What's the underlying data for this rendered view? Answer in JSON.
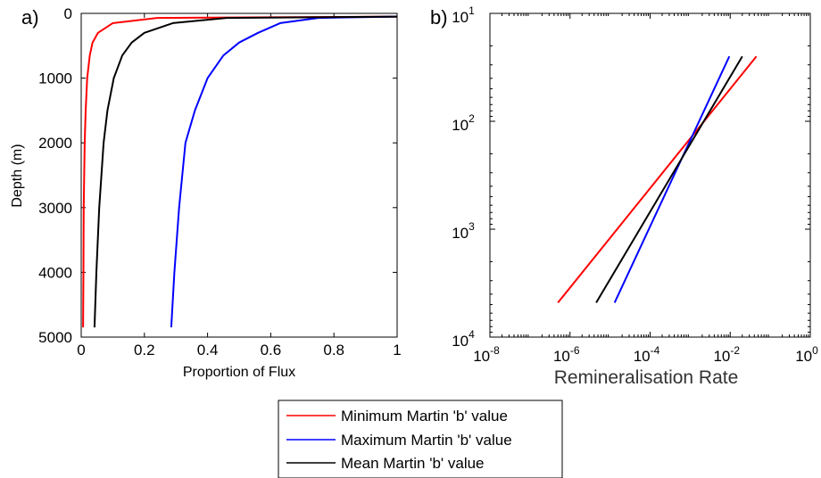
{
  "figure": {
    "panel_a_label": "a)",
    "panel_b_label": "b)",
    "legend": {
      "min": "Minimum Martin 'b' value",
      "max": "Maximum Martin 'b' value",
      "mean": "Mean Martin 'b' value"
    }
  },
  "colors": {
    "min": "#ff0000",
    "max": "#0000ff",
    "mean": "#000000"
  },
  "chart_data": [
    {
      "type": "line",
      "xlabel": "Proportion of Flux",
      "ylabel": "Depth (m)",
      "xlim": [
        0,
        1
      ],
      "ylim": [
        0,
        5000
      ],
      "y_reversed": true,
      "x_ticks": [
        "0",
        "0.2",
        "0.4",
        "0.6",
        "0.8",
        "1"
      ],
      "x_tick_values": [
        0,
        0.2,
        0.4,
        0.6,
        0.8,
        1
      ],
      "y_ticks": [
        "0",
        "1000",
        "2000",
        "3000",
        "4000",
        "5000"
      ],
      "y_tick_values": [
        0,
        1000,
        2000,
        3000,
        4000,
        5000
      ],
      "grid": false,
      "series": [
        {
          "name": "Minimum Martin 'b' value",
          "color": "#ff0000",
          "x": [
            1.0,
            0.24,
            0.1,
            0.053,
            0.036,
            0.027,
            0.019,
            0.014,
            0.011,
            0.008,
            0.007,
            0.006
          ],
          "y": [
            50,
            70,
            150,
            300,
            450,
            650,
            1000,
            1500,
            2000,
            3000,
            4000,
            4850
          ]
        },
        {
          "name": "Maximum Martin 'b' value",
          "color": "#0000ff",
          "x": [
            1.0,
            0.75,
            0.63,
            0.56,
            0.5,
            0.45,
            0.4,
            0.36,
            0.33,
            0.31,
            0.295,
            0.285
          ],
          "y": [
            50,
            70,
            150,
            300,
            450,
            650,
            1000,
            1500,
            2000,
            3000,
            4000,
            4850
          ]
        },
        {
          "name": "Mean Martin 'b' value",
          "color": "#000000",
          "x": [
            1.0,
            0.46,
            0.29,
            0.2,
            0.16,
            0.13,
            0.103,
            0.083,
            0.071,
            0.057,
            0.048,
            0.042
          ],
          "y": [
            50,
            70,
            150,
            300,
            450,
            650,
            1000,
            1500,
            2000,
            3000,
            4000,
            4850
          ]
        }
      ]
    },
    {
      "type": "line",
      "xlabel": "Remineralisation Rate",
      "ylabel": "",
      "x_scale": "log",
      "y_scale": "log",
      "y_reversed": true,
      "xlim": [
        1e-08,
        1
      ],
      "ylim": [
        10,
        10000
      ],
      "x_ticks": [
        {
          "base": "10",
          "exp": "-8",
          "value": 1e-08
        },
        {
          "base": "10",
          "exp": "-6",
          "value": 1e-06
        },
        {
          "base": "10",
          "exp": "-4",
          "value": 0.0001
        },
        {
          "base": "10",
          "exp": "-2",
          "value": 0.01
        },
        {
          "base": "10",
          "exp": "0",
          "value": 1
        }
      ],
      "y_ticks": [
        {
          "base": "10",
          "exp": "1",
          "value": 10
        },
        {
          "base": "10",
          "exp": "2",
          "value": 100
        },
        {
          "base": "10",
          "exp": "3",
          "value": 1000
        },
        {
          "base": "10",
          "exp": "4",
          "value": 10000
        }
      ],
      "grid": false,
      "series": [
        {
          "name": "Minimum Martin 'b' value",
          "color": "#ff0000",
          "x": [
            5e-07,
            0.045
          ],
          "y": [
            4800,
            25
          ]
        },
        {
          "name": "Maximum Martin 'b' value",
          "color": "#0000ff",
          "x": [
            1.3e-05,
            0.0095
          ],
          "y": [
            4800,
            25
          ]
        },
        {
          "name": "Mean Martin 'b' value",
          "color": "#000000",
          "x": [
            4.5e-06,
            0.02
          ],
          "y": [
            4800,
            25
          ]
        }
      ]
    }
  ]
}
